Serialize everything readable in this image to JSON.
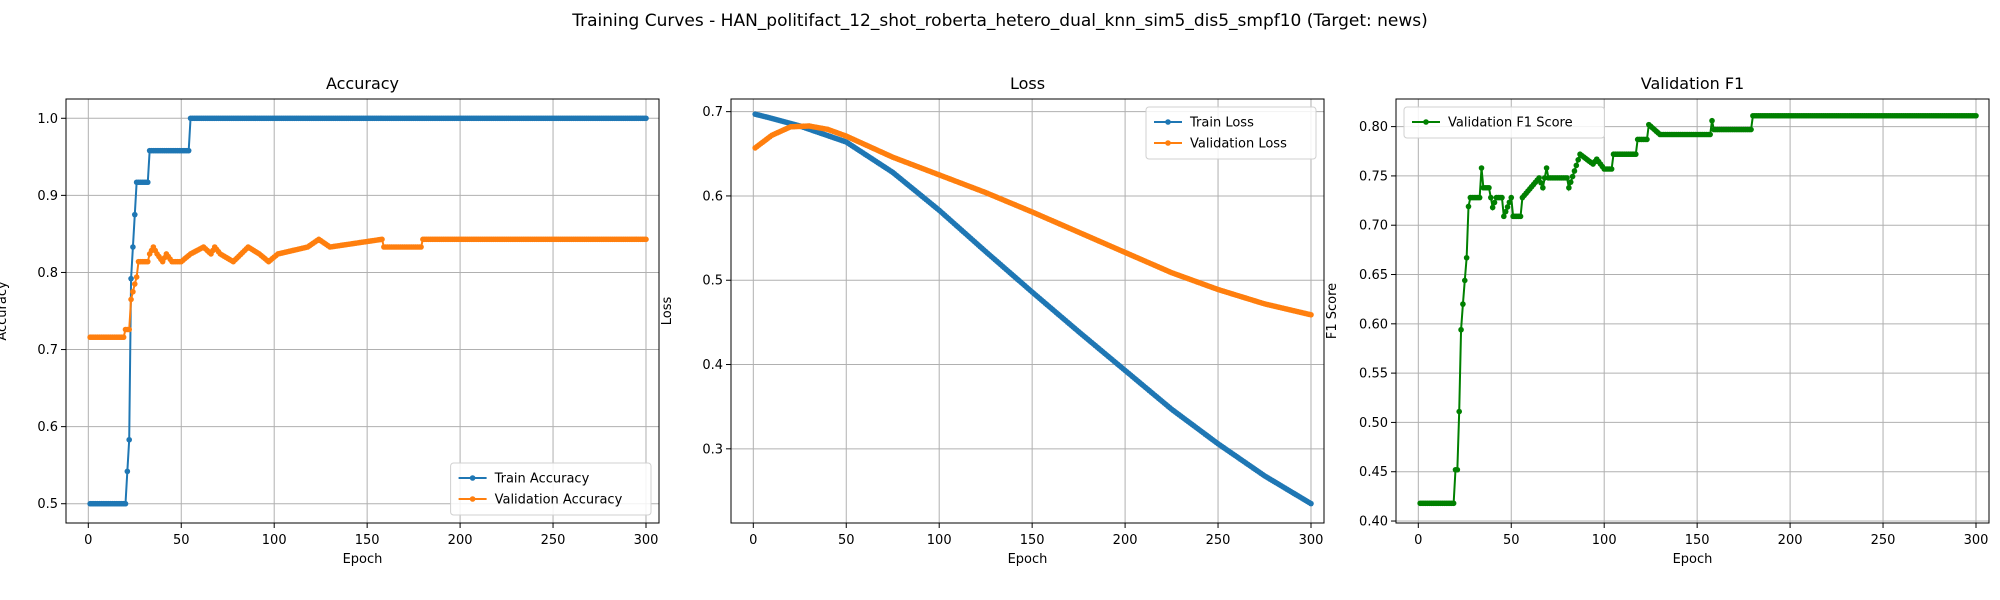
{
  "figure": {
    "suptitle": "Training Curves - HAN_politifact_12_shot_roberta_hetero_dual_knn_sim5_dis5_smpf10 (Target: news)"
  },
  "colors": {
    "blue": "#1f77b4",
    "orange": "#ff7f0e",
    "green": "#008000",
    "grid": "#b0b0b0"
  },
  "chart_data": [
    {
      "type": "line",
      "title": "Accuracy",
      "xlabel": "Epoch",
      "ylabel": "Accuracy",
      "xlim": [
        -12,
        307
      ],
      "ylim": [
        0.475,
        1.025
      ],
      "xticks": [
        0,
        50,
        100,
        150,
        200,
        250,
        300
      ],
      "yticks": [
        0.5,
        0.6,
        0.7,
        0.8,
        0.9,
        1.0
      ],
      "ytick_decimals": 1,
      "grid": true,
      "legend": "lower right",
      "series": [
        {
          "name": "Train Accuracy",
          "color": "#1f77b4",
          "x_range": [
            1,
            300
          ],
          "points": [
            [
              1,
              0.5
            ],
            [
              19,
              0.5
            ],
            [
              20,
              0.5
            ],
            [
              21,
              0.542
            ],
            [
              22,
              0.583
            ],
            [
              23,
              0.792
            ],
            [
              24,
              0.833
            ],
            [
              25,
              0.875
            ],
            [
              26,
              0.917
            ],
            [
              32,
              0.917
            ],
            [
              33,
              0.958
            ],
            [
              54,
              0.958
            ],
            [
              55,
              1.0
            ],
            [
              300,
              1.0
            ]
          ]
        },
        {
          "name": "Validation Accuracy",
          "color": "#ff7f0e",
          "x_range": [
            1,
            300
          ],
          "points": [
            [
              1,
              0.716
            ],
            [
              19,
              0.716
            ],
            [
              20,
              0.726
            ],
            [
              22,
              0.726
            ],
            [
              23,
              0.765
            ],
            [
              24,
              0.775
            ],
            [
              25,
              0.785
            ],
            [
              26,
              0.794
            ],
            [
              27,
              0.814
            ],
            [
              32,
              0.814
            ],
            [
              33,
              0.824
            ],
            [
              35,
              0.833
            ],
            [
              37,
              0.824
            ],
            [
              40,
              0.814
            ],
            [
              42,
              0.824
            ],
            [
              45,
              0.814
            ],
            [
              50,
              0.814
            ],
            [
              55,
              0.824
            ],
            [
              62,
              0.833
            ],
            [
              66,
              0.824
            ],
            [
              68,
              0.833
            ],
            [
              71,
              0.824
            ],
            [
              78,
              0.814
            ],
            [
              86,
              0.833
            ],
            [
              92,
              0.824
            ],
            [
              97,
              0.814
            ],
            [
              102,
              0.824
            ],
            [
              118,
              0.833
            ],
            [
              124,
              0.843
            ],
            [
              130,
              0.833
            ],
            [
              158,
              0.843
            ],
            [
              159,
              0.833
            ],
            [
              179,
              0.833
            ],
            [
              180,
              0.843
            ],
            [
              300,
              0.843
            ]
          ]
        }
      ]
    },
    {
      "type": "line",
      "title": "Loss",
      "xlabel": "Epoch",
      "ylabel": "Loss",
      "xlim": [
        -12,
        307
      ],
      "ylim": [
        0.212,
        0.715
      ],
      "xticks": [
        0,
        50,
        100,
        150,
        200,
        250,
        300
      ],
      "yticks": [
        0.3,
        0.4,
        0.5,
        0.6,
        0.7
      ],
      "ytick_decimals": 1,
      "grid": true,
      "legend": "upper right",
      "series": [
        {
          "name": "Train Loss",
          "color": "#1f77b4",
          "x_range": [
            1,
            300
          ],
          "points": [
            [
              1,
              0.697
            ],
            [
              10,
              0.692
            ],
            [
              25,
              0.683
            ],
            [
              50,
              0.664
            ],
            [
              75,
              0.628
            ],
            [
              100,
              0.583
            ],
            [
              125,
              0.534
            ],
            [
              150,
              0.486
            ],
            [
              175,
              0.439
            ],
            [
              200,
              0.393
            ],
            [
              225,
              0.347
            ],
            [
              250,
              0.306
            ],
            [
              275,
              0.268
            ],
            [
              300,
              0.235
            ]
          ]
        },
        {
          "name": "Validation Loss",
          "color": "#ff7f0e",
          "x_range": [
            1,
            300
          ],
          "points": [
            [
              1,
              0.657
            ],
            [
              10,
              0.672
            ],
            [
              20,
              0.682
            ],
            [
              30,
              0.683
            ],
            [
              40,
              0.679
            ],
            [
              50,
              0.671
            ],
            [
              75,
              0.646
            ],
            [
              100,
              0.625
            ],
            [
              125,
              0.604
            ],
            [
              150,
              0.581
            ],
            [
              175,
              0.557
            ],
            [
              200,
              0.533
            ],
            [
              225,
              0.509
            ],
            [
              250,
              0.489
            ],
            [
              275,
              0.472
            ],
            [
              300,
              0.459
            ]
          ]
        }
      ]
    },
    {
      "type": "line",
      "title": "Validation F1",
      "xlabel": "Epoch",
      "ylabel": "F1 Score",
      "xlim": [
        -12,
        307
      ],
      "ylim": [
        0.398,
        0.828
      ],
      "xticks": [
        0,
        50,
        100,
        150,
        200,
        250,
        300
      ],
      "yticks": [
        0.4,
        0.45,
        0.5,
        0.55,
        0.6,
        0.65,
        0.7,
        0.75,
        0.8
      ],
      "ytick_decimals": 2,
      "grid": true,
      "legend": "upper left",
      "series": [
        {
          "name": "Validation F1 Score",
          "color": "#008000",
          "x_range": [
            1,
            300
          ],
          "points": [
            [
              1,
              0.418
            ],
            [
              19,
              0.418
            ],
            [
              20,
              0.452
            ],
            [
              21,
              0.452
            ],
            [
              22,
              0.511
            ],
            [
              23,
              0.594
            ],
            [
              24,
              0.62
            ],
            [
              25,
              0.644
            ],
            [
              26,
              0.667
            ],
            [
              27,
              0.719
            ],
            [
              28,
              0.728
            ],
            [
              33,
              0.728
            ],
            [
              34,
              0.758
            ],
            [
              35,
              0.738
            ],
            [
              38,
              0.738
            ],
            [
              40,
              0.718
            ],
            [
              42,
              0.728
            ],
            [
              45,
              0.728
            ],
            [
              46,
              0.709
            ],
            [
              50,
              0.728
            ],
            [
              51,
              0.709
            ],
            [
              55,
              0.709
            ],
            [
              56,
              0.728
            ],
            [
              65,
              0.748
            ],
            [
              67,
              0.738
            ],
            [
              69,
              0.758
            ],
            [
              70,
              0.748
            ],
            [
              80,
              0.748
            ],
            [
              81,
              0.738
            ],
            [
              87,
              0.772
            ],
            [
              94,
              0.762
            ],
            [
              96,
              0.767
            ],
            [
              100,
              0.757
            ],
            [
              104,
              0.757
            ],
            [
              105,
              0.772
            ],
            [
              117,
              0.772
            ],
            [
              118,
              0.787
            ],
            [
              123,
              0.787
            ],
            [
              124,
              0.802
            ],
            [
              130,
              0.792
            ],
            [
              157,
              0.792
            ],
            [
              158,
              0.806
            ],
            [
              159,
              0.797
            ],
            [
              179,
              0.797
            ],
            [
              180,
              0.811
            ],
            [
              300,
              0.811
            ]
          ]
        }
      ]
    }
  ]
}
